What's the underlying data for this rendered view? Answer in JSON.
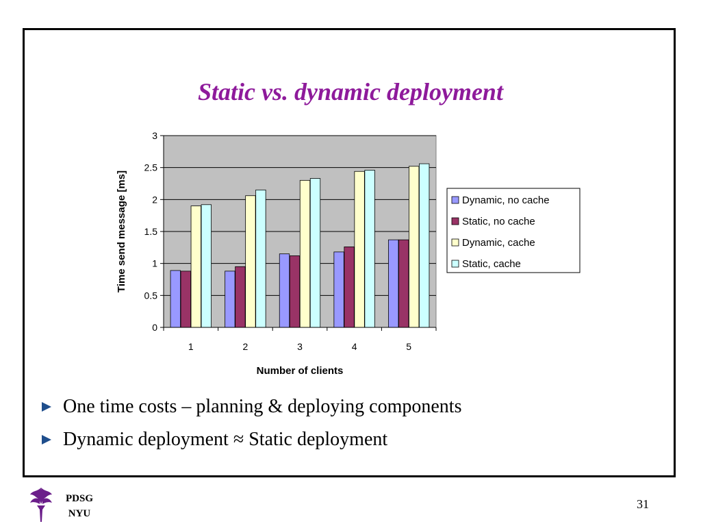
{
  "slide": {
    "title": "Static vs. dynamic deployment",
    "bullets": [
      "One time costs – planning & deploying components",
      "Dynamic deployment ≈ Static deployment"
    ],
    "footer": {
      "org_line1": "PDSG",
      "org_line2": "NYU",
      "page_number": "31"
    },
    "colors": {
      "title": "#8e1a9b",
      "bullet": "#1f4e8c",
      "logo": "#6b1e8a"
    }
  },
  "chart_data": {
    "type": "bar",
    "xlabel": "Number of clients",
    "ylabel": "Time send message [ms]",
    "categories": [
      "1",
      "2",
      "3",
      "4",
      "5"
    ],
    "ylim": [
      0,
      3
    ],
    "yticks": [
      "0",
      "0.5",
      "1",
      "1.5",
      "2",
      "2.5",
      "3"
    ],
    "grid": true,
    "legend_position": "right",
    "plot_background": "#c0c0c0",
    "series": [
      {
        "name": "Dynamic, no cache",
        "color": "#9999ff",
        "values": [
          0.89,
          0.88,
          1.15,
          1.18,
          1.37
        ]
      },
      {
        "name": "Static, no cache",
        "color": "#993366",
        "values": [
          0.88,
          0.95,
          1.12,
          1.26,
          1.37
        ]
      },
      {
        "name": "Dynamic, cache",
        "color": "#ffffcc",
        "values": [
          1.9,
          2.06,
          2.3,
          2.44,
          2.52
        ]
      },
      {
        "name": "Static, cache",
        "color": "#ccffff",
        "values": [
          1.92,
          2.15,
          2.33,
          2.46,
          2.56
        ]
      }
    ]
  }
}
